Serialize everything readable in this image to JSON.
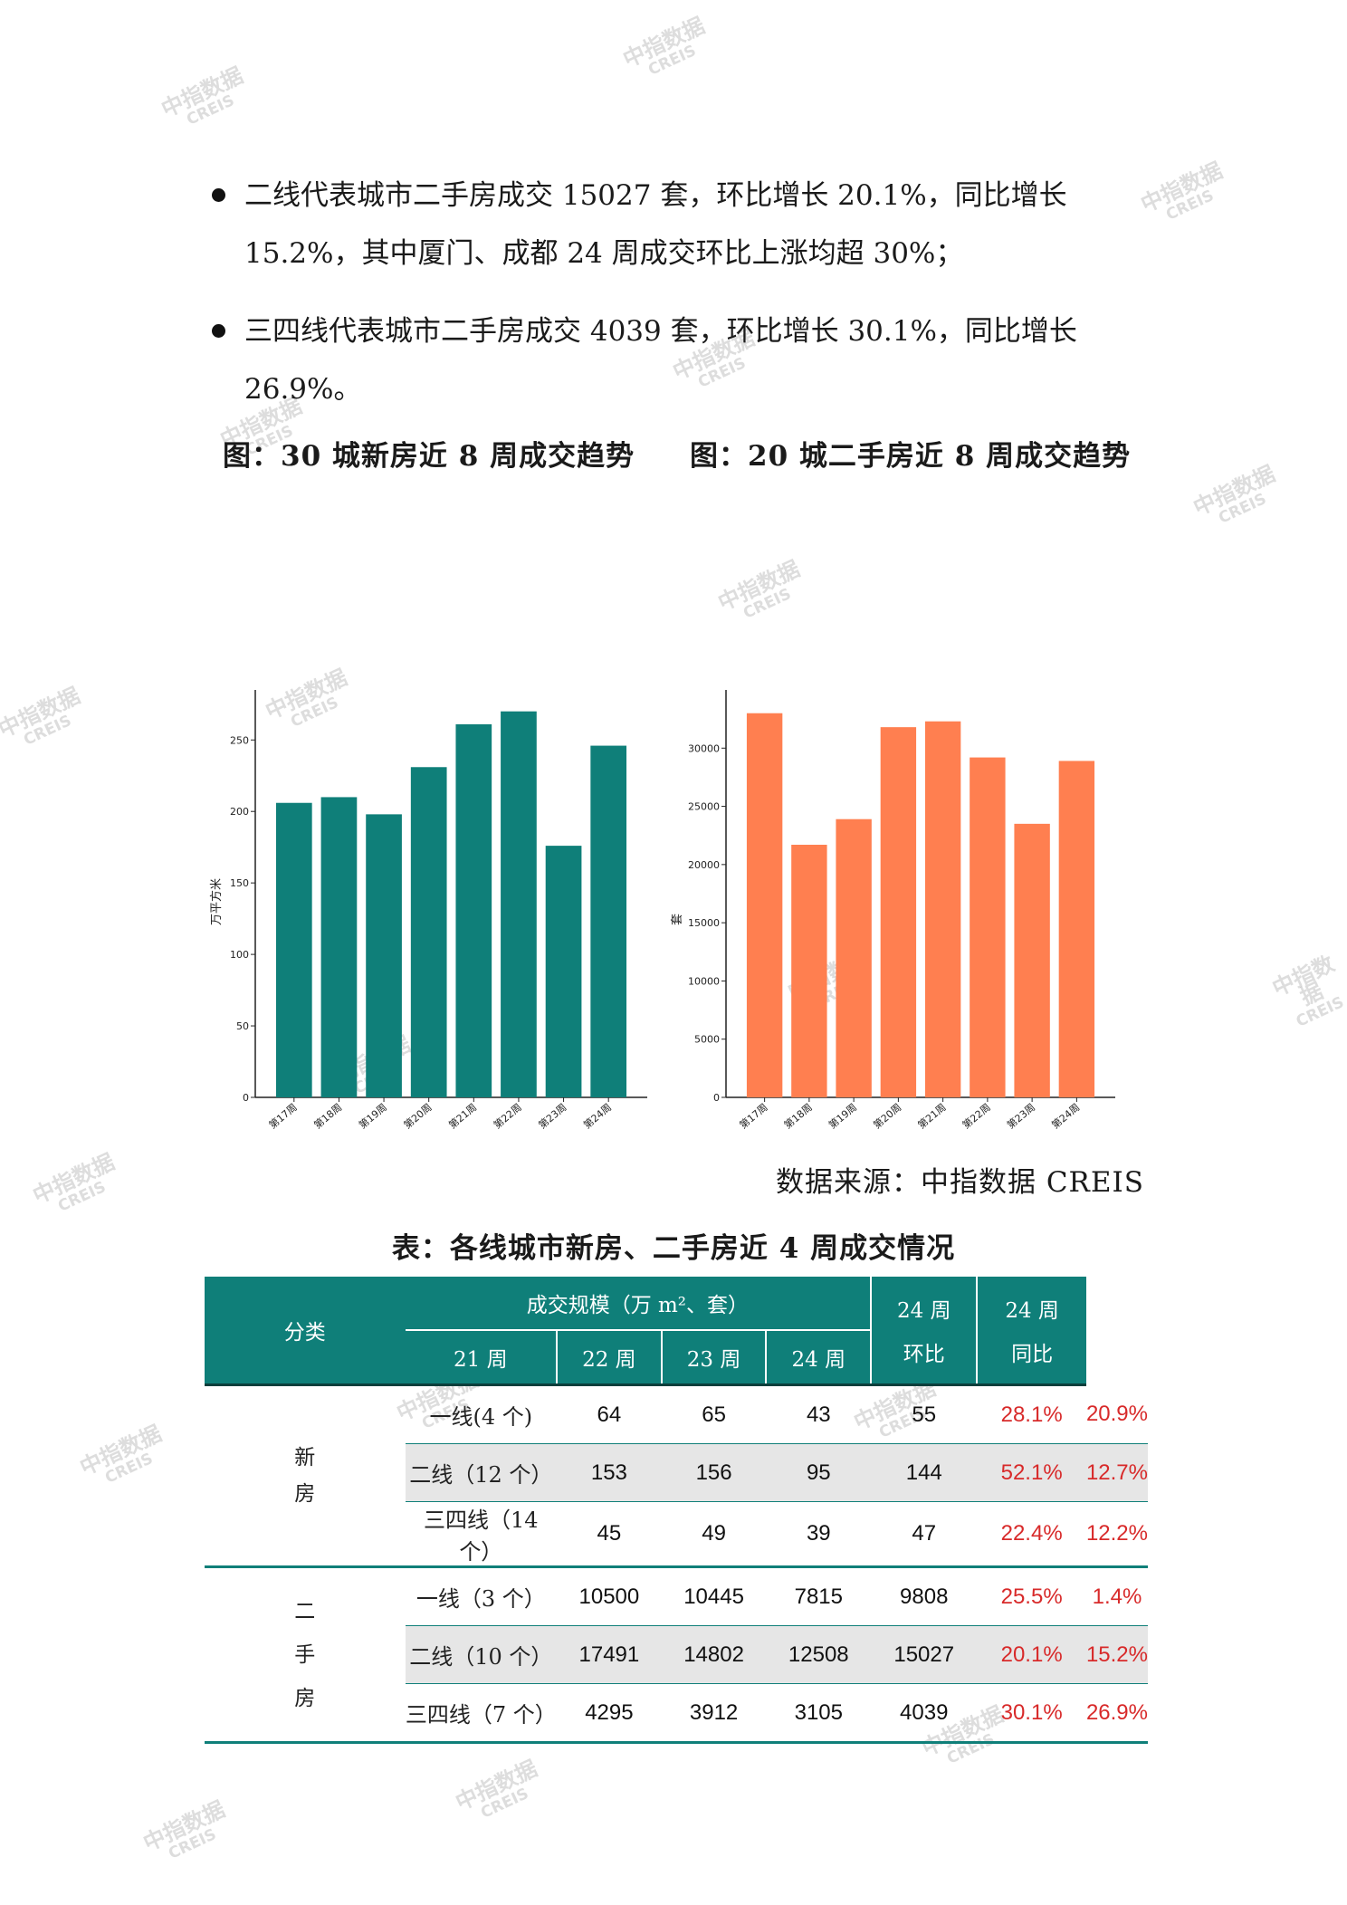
{
  "bullets": [
    {
      "line1": "二线代表城市二手房成交 15027 套，环比增长 20.1%，同比增长",
      "line2": "15.2%，其中厦门、成都 24 周成交环比上涨均超 30%；"
    },
    {
      "line1": "三四线代表城市二手房成交 4039 套，环比增长 30.1%，同比增长",
      "line2": "26.9%。"
    }
  ],
  "figure_titles": {
    "left": "图：30 城新房近 8 周成交趋势",
    "right": "图：20 城二手房近 8 周成交趋势"
  },
  "chart_data": [
    {
      "type": "bar",
      "categories": [
        "第17周",
        "第18周",
        "第19周",
        "第20周",
        "第21周",
        "第22周",
        "第23周",
        "第24周"
      ],
      "values": [
        206,
        210,
        198,
        231,
        261,
        270,
        176,
        246
      ],
      "ylabel": "万平方米",
      "ylim": [
        0,
        285
      ],
      "yticks": [
        0,
        50,
        100,
        150,
        200,
        250
      ],
      "color": "#0f7f79",
      "grid": false
    },
    {
      "type": "bar",
      "categories": [
        "第17周",
        "第18周",
        "第19周",
        "第20周",
        "第21周",
        "第22周",
        "第23周",
        "第24周"
      ],
      "values": [
        33000,
        21700,
        23900,
        31800,
        32300,
        29200,
        23500,
        28900
      ],
      "ylabel": "套",
      "ylim": [
        0,
        35000
      ],
      "yticks": [
        0,
        5000,
        10000,
        15000,
        20000,
        25000,
        30000
      ],
      "color": "#ff7f50",
      "grid": false
    }
  ],
  "source": "数据来源：中指数据 CREIS",
  "table_title": "表：各线城市新房、二手房近 4 周成交情况",
  "table": {
    "header": {
      "category": "分类",
      "scale": "成交规模（万 m²、套）",
      "weeks": [
        "21 周",
        "22 周",
        "23 周",
        "24 周"
      ],
      "mom_line1": "24 周",
      "mom_line2": "环比",
      "yoy_line1": "24 周",
      "yoy_line2": "同比"
    },
    "groups": [
      {
        "chars": [
          "新",
          "房"
        ],
        "rows": [
          {
            "label": "一线(4 个)",
            "values": [
              "64",
              "65",
              "43",
              "55"
            ],
            "mom": "28.1%",
            "yoy": "20.9%"
          },
          {
            "label": "二线（12 个）",
            "values": [
              "153",
              "156",
              "95",
              "144"
            ],
            "mom": "52.1%",
            "yoy": "12.7%"
          },
          {
            "label": "三四线（14 个）",
            "values": [
              "45",
              "49",
              "39",
              "47"
            ],
            "mom": "22.4%",
            "yoy": "12.2%"
          }
        ]
      },
      {
        "chars": [
          "二",
          "手",
          "房"
        ],
        "rows": [
          {
            "label": "一线（3 个）",
            "values": [
              "10500",
              "10445",
              "7815",
              "9808"
            ],
            "mom": "25.5%",
            "yoy": "1.4%"
          },
          {
            "label": "二线（10 个）",
            "values": [
              "17491",
              "14802",
              "12508",
              "15027"
            ],
            "mom": "20.1%",
            "yoy": "15.2%"
          },
          {
            "label": "三四线（7 个）",
            "values": [
              "4295",
              "3912",
              "3105",
              "4039"
            ],
            "mom": "30.1%",
            "yoy": "26.9%"
          }
        ]
      }
    ]
  },
  "watermark": {
    "line1": "中指数据",
    "line2": "CREIS"
  }
}
